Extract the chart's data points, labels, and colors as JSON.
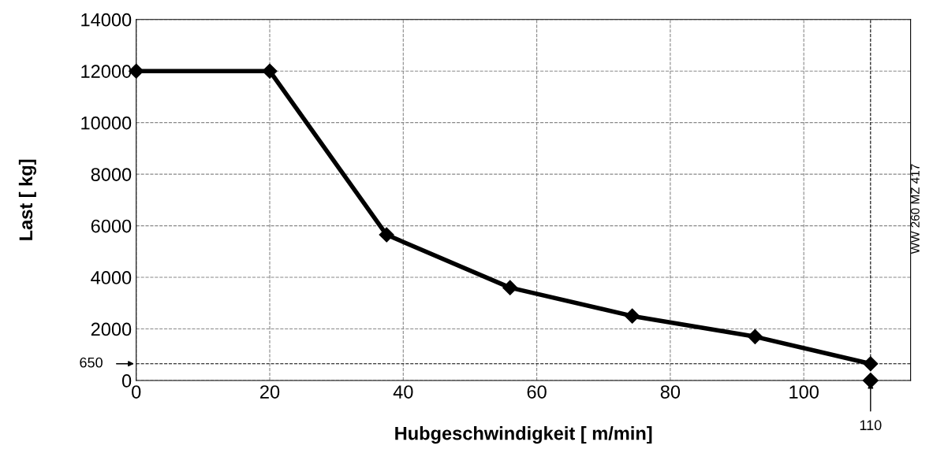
{
  "chart_data": {
    "type": "line",
    "xlabel": "Hubgeschwindigkeit [ m/min]",
    "ylabel": "Last [ kg]",
    "xlim": [
      0,
      116
    ],
    "ylim": [
      0,
      14000
    ],
    "xticks": [
      0,
      20,
      40,
      60,
      80,
      100
    ],
    "yticks": [
      0,
      2000,
      4000,
      6000,
      8000,
      10000,
      12000,
      14000
    ],
    "grid": true,
    "marker": "diamond",
    "line_style": "solid",
    "series": [
      {
        "color": "#000000",
        "x": [
          0,
          20,
          37.5,
          56,
          74.3,
          92.7,
          110
        ],
        "values": [
          12000,
          12000,
          5650,
          3600,
          2500,
          1700,
          650
        ]
      },
      {
        "type": "scatter",
        "color": "#000000",
        "x": [
          110
        ],
        "values": [
          0
        ]
      }
    ],
    "ref_lines": [
      {
        "axis": "y",
        "value": 650,
        "label": "650",
        "line_style": "dashed",
        "color": "#000000"
      },
      {
        "axis": "x",
        "value": 110,
        "label": "110",
        "line_style": "dashed",
        "color": "#000000"
      }
    ],
    "annotations": [
      "WW 260 MZ 417"
    ]
  }
}
